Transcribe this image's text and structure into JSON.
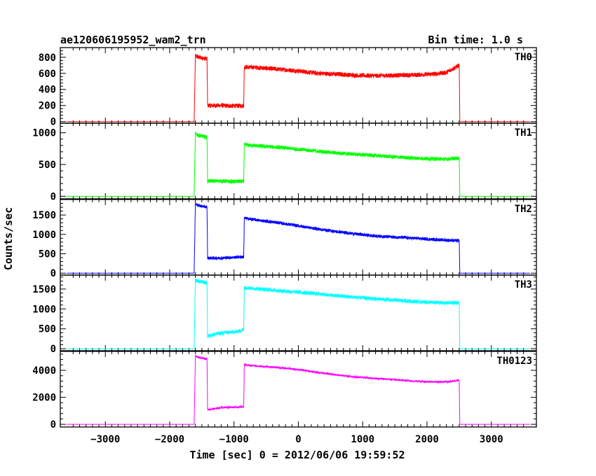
{
  "title_left": "ae120606195952_wam2_trn",
  "title_right": "Bin time: 1.0 s",
  "xlabel": "Time [sec] 0 = 2012/06/06 19:59:52",
  "ylabel": "Counts/sec",
  "colors": {
    "TH0": "#ff0000",
    "TH1": "#00ff00",
    "TH2": "#0000ff",
    "TH3": "#00ffff",
    "TH0123": "#ff00ff"
  },
  "chart_data": {
    "type": "line",
    "x_range": [
      -3700,
      3700
    ],
    "x_ticks": [
      -3000,
      -2000,
      -1000,
      0,
      1000,
      2000,
      3000
    ],
    "x_tick_labels": [
      "−3000",
      "−2000",
      "−1000",
      "0",
      "1000",
      "2000",
      "3000"
    ],
    "panels": [
      {
        "name": "TH0",
        "color": "#ff0000",
        "ylim": [
          -20,
          920
        ],
        "y_ticks": [
          0,
          200,
          400,
          600,
          800
        ],
        "y_tick_labels": [
          "0",
          "200",
          "400",
          "600",
          "800"
        ],
        "series": {
          "x": [
            -3600,
            -1620,
            -1600,
            -1560,
            -1420,
            -1410,
            -1200,
            -1000,
            -850,
            -840,
            -600,
            -300,
            0,
            300,
            600,
            900,
            1200,
            1500,
            1800,
            2100,
            2300,
            2450,
            2500,
            2510,
            3600
          ],
          "y": [
            0,
            0,
            820,
            800,
            780,
            200,
            200,
            195,
            200,
            680,
            670,
            650,
            630,
            600,
            590,
            575,
            570,
            575,
            580,
            590,
            610,
            680,
            700,
            0,
            0
          ]
        },
        "noise": 28
      },
      {
        "name": "TH1",
        "color": "#00ff00",
        "ylim": [
          -40,
          1150
        ],
        "y_ticks": [
          0,
          500,
          1000
        ],
        "y_tick_labels": [
          "0",
          "500",
          "1000"
        ],
        "series": {
          "x": [
            -3600,
            -1620,
            -1600,
            -1560,
            -1420,
            -1410,
            -1200,
            -1000,
            -850,
            -840,
            -600,
            -300,
            0,
            300,
            600,
            900,
            1200,
            1500,
            1800,
            2100,
            2300,
            2500,
            2510,
            3600
          ],
          "y": [
            0,
            0,
            990,
            960,
            930,
            240,
            240,
            230,
            235,
            810,
            790,
            770,
            740,
            710,
            680,
            660,
            640,
            620,
            600,
            590,
            585,
            600,
            0,
            0
          ]
        },
        "noise": 30
      },
      {
        "name": "TH2",
        "color": "#0000ff",
        "ylim": [
          -50,
          1900
        ],
        "y_ticks": [
          0,
          500,
          1000,
          1500
        ],
        "y_tick_labels": [
          "0",
          "500",
          "1000",
          "1500"
        ],
        "series": {
          "x": [
            -3600,
            -1620,
            -1600,
            -1560,
            -1420,
            -1410,
            -1200,
            -1000,
            -850,
            -840,
            -600,
            -300,
            0,
            300,
            600,
            900,
            1200,
            1500,
            1800,
            2100,
            2300,
            2500,
            2510,
            3600
          ],
          "y": [
            0,
            0,
            1800,
            1750,
            1700,
            390,
            390,
            410,
            420,
            1420,
            1360,
            1300,
            1220,
            1140,
            1070,
            1010,
            960,
            930,
            900,
            870,
            850,
            840,
            0,
            0
          ]
        },
        "noise": 40
      },
      {
        "name": "TH3",
        "color": "#00ffff",
        "ylim": [
          -50,
          1850
        ],
        "y_ticks": [
          0,
          500,
          1000,
          1500
        ],
        "y_tick_labels": [
          "0",
          "500",
          "1000",
          "1500"
        ],
        "series": {
          "x": [
            -3600,
            -1620,
            -1600,
            -1560,
            -1420,
            -1410,
            -1250,
            -1100,
            -950,
            -850,
            -840,
            -600,
            -300,
            0,
            300,
            600,
            900,
            1200,
            1500,
            1800,
            2100,
            2300,
            2500,
            2510,
            3600
          ],
          "y": [
            0,
            0,
            1720,
            1700,
            1650,
            320,
            380,
            410,
            430,
            480,
            1540,
            1500,
            1460,
            1420,
            1380,
            1330,
            1290,
            1250,
            1220,
            1190,
            1160,
            1150,
            1160,
            0,
            0
          ]
        },
        "noise": 50
      },
      {
        "name": "TH0123",
        "color": "#ff00ff",
        "ylim": [
          -200,
          5400
        ],
        "y_ticks": [
          0,
          2000,
          4000
        ],
        "y_tick_labels": [
          "0",
          "2000",
          "4000"
        ],
        "series": {
          "x": [
            -3600,
            -1620,
            -1600,
            -1560,
            -1420,
            -1410,
            -1300,
            -1200,
            -1000,
            -850,
            -840,
            -600,
            -300,
            0,
            300,
            600,
            900,
            1200,
            1500,
            1800,
            2100,
            2300,
            2500,
            2510,
            3600
          ],
          "y": [
            0,
            0,
            5050,
            4950,
            4850,
            1100,
            1150,
            1250,
            1270,
            1300,
            4400,
            4300,
            4200,
            4050,
            3850,
            3650,
            3500,
            3400,
            3300,
            3200,
            3150,
            3150,
            3250,
            0,
            0
          ]
        },
        "noise": 70
      }
    ]
  }
}
